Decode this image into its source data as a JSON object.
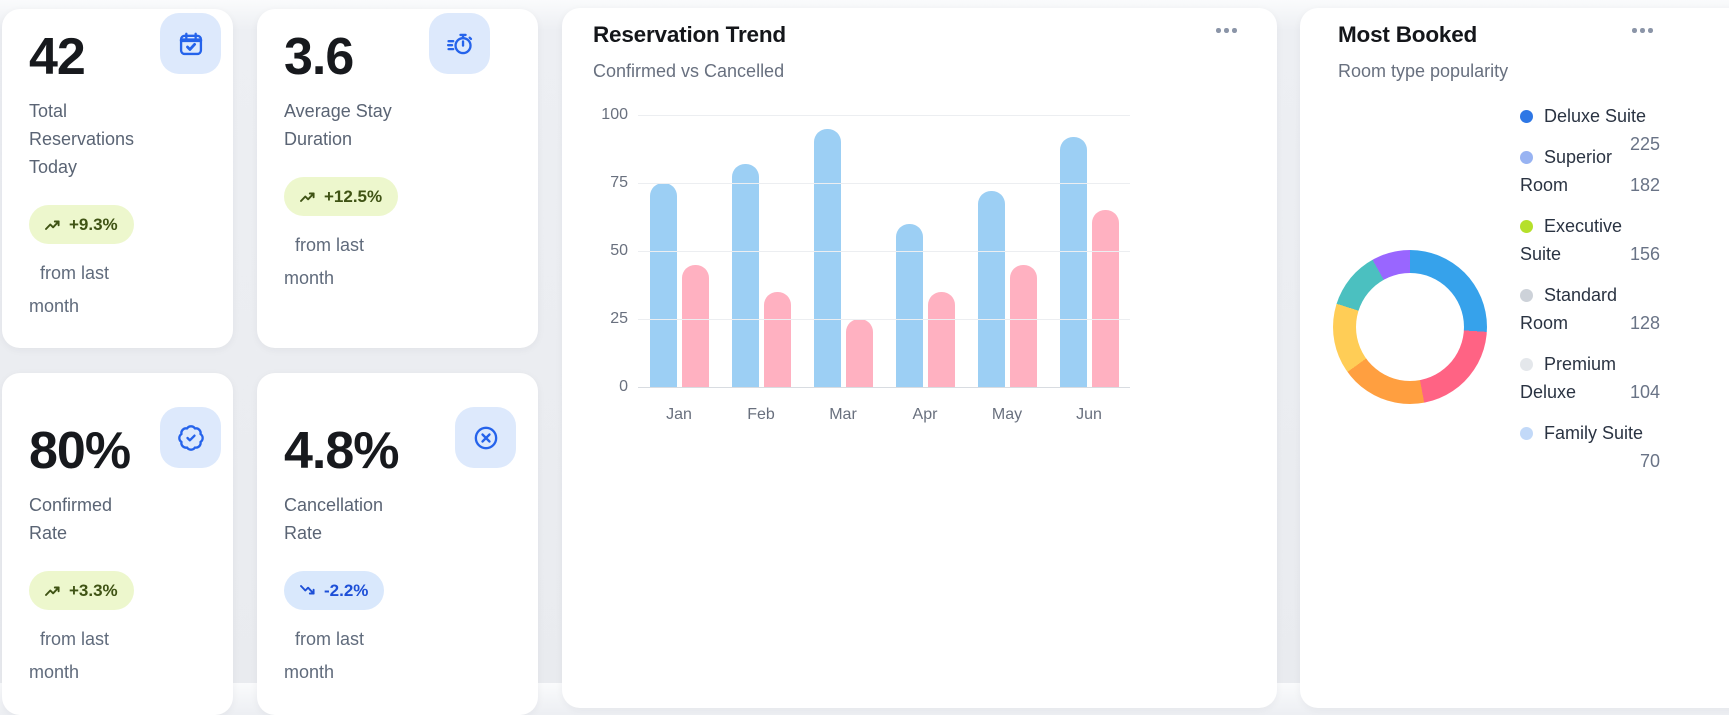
{
  "cards": [
    {
      "value": "42",
      "label": "Total Reservations Today",
      "badge": "+9.3%",
      "trend": "up",
      "badge_style": "green",
      "footnote": "from last month",
      "icon": "calendar-check"
    },
    {
      "value": "3.6",
      "label": "Average Stay Duration",
      "badge": "+12.5%",
      "trend": "up",
      "badge_style": "green",
      "footnote": "from last month",
      "icon": "timer-fast"
    },
    {
      "value": "80%",
      "label": "Confirmed Rate",
      "badge": "+3.3%",
      "trend": "up",
      "badge_style": "green",
      "footnote": "from last month",
      "icon": "badge-check"
    },
    {
      "value": "4.8%",
      "label": "Cancellation Rate",
      "badge": "-2.2%",
      "trend": "down",
      "badge_style": "blue",
      "footnote": "from last month",
      "icon": "circle-x"
    }
  ],
  "reservation_trend": {
    "title": "Reservation Trend",
    "subtitle": "Confirmed vs Cancelled"
  },
  "most_booked": {
    "title": "Most Booked",
    "subtitle": "Room type popularity",
    "legend": [
      {
        "label": "Deluxe Suite",
        "value": 225,
        "dot_color": "#2e77e5"
      },
      {
        "label": "Superior Room",
        "value": 182,
        "dot_color": "#98b3f2"
      },
      {
        "label": "Executive Suite",
        "value": 156,
        "dot_color": "#b5e02b"
      },
      {
        "label": "Standard Room",
        "value": 128,
        "dot_color": "#cdd2d9"
      },
      {
        "label": "Premium Deluxe",
        "value": 104,
        "dot_color": "#e4e7eb"
      },
      {
        "label": "Family Suite",
        "value": 70,
        "dot_color": "#c2d9f8"
      }
    ]
  },
  "chart_data": [
    {
      "type": "bar",
      "title": "Reservation Trend",
      "subtitle": "Confirmed vs Cancelled",
      "categories": [
        "Jan",
        "Feb",
        "Mar",
        "Apr",
        "May",
        "Jun"
      ],
      "series": [
        {
          "name": "Confirmed",
          "color": "#9ccff4",
          "values": [
            75,
            82,
            95,
            60,
            72,
            92
          ]
        },
        {
          "name": "Cancelled",
          "color": "#ffb1c1",
          "values": [
            45,
            35,
            25,
            35,
            45,
            65
          ]
        }
      ],
      "ylim": [
        0,
        100
      ],
      "yticks": [
        0,
        25,
        50,
        75,
        100
      ],
      "grid": true,
      "legend_position": "none"
    },
    {
      "type": "pie",
      "subtype": "donut",
      "title": "Most Booked",
      "labels": [
        "Deluxe Suite",
        "Superior Room",
        "Executive Suite",
        "Standard Room",
        "Premium Deluxe",
        "Family Suite"
      ],
      "values": [
        225,
        182,
        156,
        128,
        104,
        70
      ],
      "slice_colors": [
        "#36a2eb",
        "#ff6384",
        "#ff9f40",
        "#ffcd56",
        "#4bc0c0",
        "#9966ff"
      ],
      "start_angle_deg": 0,
      "legend_position": "right"
    }
  ],
  "colors": {
    "accent_blue": "#2563eb",
    "icon_bg": "#dde9fc",
    "badge_green_bg": "#edf7cd",
    "badge_green_text": "#3f5314",
    "badge_blue_bg": "#d9e8fc",
    "badge_blue_text": "#1d4fd7",
    "bar_confirmed": "#9ccff4",
    "bar_cancelled": "#ffb1c1",
    "page_bg": "#e9ebef",
    "card_bg": "#ffffff"
  }
}
